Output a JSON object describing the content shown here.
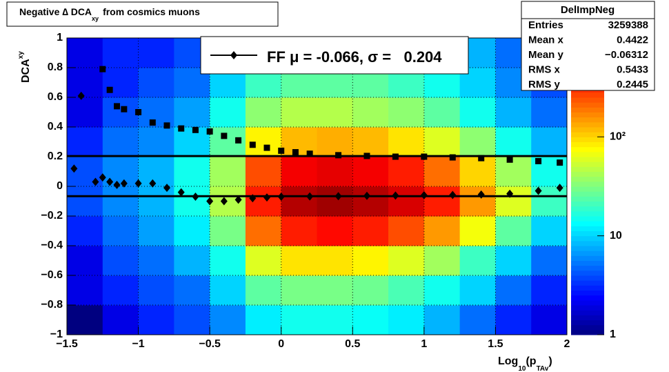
{
  "chart_data": {
    "type": "heatmap-scatter",
    "title_parts": [
      "Negative ∆ DCA",
      "xy",
      "from cosmics muons"
    ],
    "ylabel_parts": [
      "DCA",
      "xy"
    ],
    "xlabel_parts": [
      "Log",
      "10",
      "(p",
      "TAv",
      ")"
    ],
    "xlim": [
      -1.5,
      2
    ],
    "ylim": [
      -1,
      1
    ],
    "xticks": [
      {
        "value": -1.5,
        "label": "−1.5"
      },
      {
        "value": -1,
        "label": "−1"
      },
      {
        "value": -0.5,
        "label": "−0.5"
      },
      0,
      0.5,
      1,
      1.5,
      2
    ],
    "yticks": [
      {
        "value": -1,
        "label": "−1"
      },
      {
        "value": -0.8,
        "label": "−0.8"
      },
      {
        "value": -0.6,
        "label": "−0.6"
      },
      {
        "value": -0.4,
        "label": "−0.4"
      },
      {
        "value": -0.2,
        "label": "−0.2"
      },
      0,
      0.2,
      0.4,
      0.6,
      0.8,
      1
    ],
    "grid": true,
    "zlim": [
      1,
      1000
    ],
    "zscale": "log",
    "zticks": [
      1,
      10,
      {
        "value": 100,
        "label": "10²"
      }
    ],
    "heatmap": {
      "xbins": [
        -1.5,
        -1.25,
        -1,
        -0.75,
        -0.5,
        -0.25,
        0,
        0.25,
        0.5,
        0.75,
        1,
        1.25,
        1.5,
        1.75,
        2
      ],
      "ybins": [
        -1,
        -0.8,
        -0.6,
        -0.4,
        -0.2,
        0,
        0.2,
        0.4,
        0.6,
        0.8,
        1
      ],
      "z": [
        [
          1,
          2,
          3,
          4,
          6,
          12,
          15,
          15,
          14,
          12,
          8,
          5,
          3,
          2
        ],
        [
          2,
          3,
          4,
          5,
          10,
          25,
          30,
          30,
          28,
          22,
          15,
          10,
          5,
          3
        ],
        [
          2,
          4,
          5,
          8,
          15,
          60,
          90,
          90,
          80,
          60,
          40,
          20,
          10,
          5
        ],
        [
          3,
          5,
          7,
          12,
          30,
          200,
          350,
          400,
          350,
          250,
          150,
          70,
          25,
          10
        ],
        [
          4,
          6,
          8,
          15,
          45,
          350,
          700,
          800,
          700,
          550,
          350,
          150,
          60,
          20
        ],
        [
          4,
          6,
          8,
          15,
          40,
          250,
          450,
          500,
          450,
          350,
          200,
          100,
          40,
          15
        ],
        [
          3,
          5,
          6,
          10,
          25,
          80,
          120,
          130,
          120,
          90,
          60,
          35,
          15,
          8
        ],
        [
          2,
          4,
          5,
          7,
          15,
          35,
          45,
          45,
          40,
          35,
          25,
          15,
          8,
          5
        ],
        [
          2,
          3,
          4,
          5,
          10,
          20,
          25,
          25,
          25,
          20,
          15,
          10,
          6,
          4
        ],
        [
          2,
          3,
          3,
          4,
          8,
          15,
          18,
          18,
          18,
          15,
          12,
          8,
          5,
          4
        ]
      ]
    },
    "series": [
      {
        "marker": "diamond",
        "color": "#000000",
        "x": [
          -1.45,
          -1.4,
          -1.3,
          -1.25,
          -1.2,
          -1.15,
          -1.1,
          -1.0,
          -0.9,
          -0.8,
          -0.7,
          -0.6,
          -0.5,
          -0.4,
          -0.3,
          -0.2,
          -0.1,
          0,
          0.2,
          0.4,
          0.6,
          0.8,
          1.0,
          1.2,
          1.4,
          1.6,
          1.8,
          1.95
        ],
        "values": [
          0.12,
          0.61,
          0.03,
          0.06,
          0.03,
          0.01,
          0.02,
          0.02,
          0.02,
          -0.01,
          -0.04,
          -0.07,
          -0.1,
          -0.1,
          -0.09,
          -0.08,
          -0.075,
          -0.07,
          -0.068,
          -0.066,
          -0.064,
          -0.062,
          -0.06,
          -0.058,
          -0.055,
          -0.05,
          -0.03,
          -0.01
        ]
      },
      {
        "marker": "square",
        "color": "#000000",
        "x": [
          -1.25,
          -1.2,
          -1.15,
          -1.1,
          -1.0,
          -0.9,
          -0.8,
          -0.7,
          -0.6,
          -0.5,
          -0.4,
          -0.3,
          -0.2,
          -0.1,
          0,
          0.1,
          0.2,
          0.4,
          0.6,
          0.8,
          1.0,
          1.2,
          1.4,
          1.6,
          1.8,
          1.95
        ],
        "values": [
          0.79,
          0.65,
          0.54,
          0.52,
          0.5,
          0.43,
          0.41,
          0.39,
          0.38,
          0.37,
          0.34,
          0.31,
          0.28,
          0.26,
          0.24,
          0.23,
          0.22,
          0.21,
          0.205,
          0.2,
          0.2,
          0.195,
          0.19,
          0.18,
          0.17,
          0.16
        ]
      }
    ],
    "fit_mean": -0.066,
    "fit_sigma": 0.204,
    "legend_text": "FF μ = -0.066, σ =   0.204",
    "stats": {
      "name": "DelImpNeg",
      "rows": [
        [
          "Entries",
          "3259388"
        ],
        [
          "Mean x",
          "0.4422"
        ],
        [
          "Mean y",
          "−0.06312"
        ],
        [
          "RMS x",
          "0.5433"
        ],
        [
          "RMS y",
          "0.2445"
        ]
      ]
    }
  }
}
